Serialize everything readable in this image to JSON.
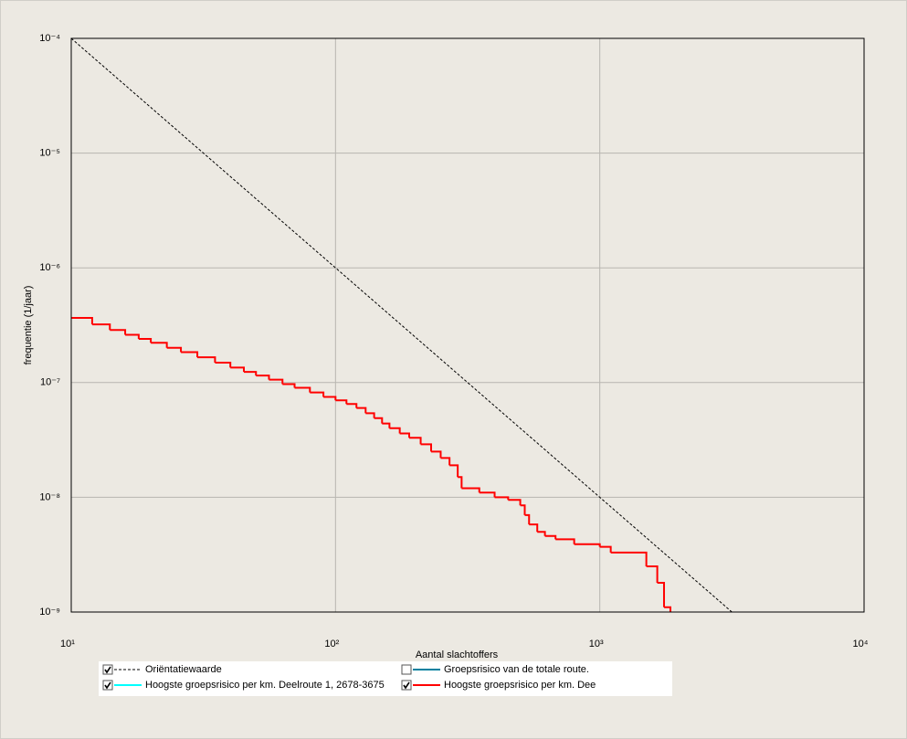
{
  "chart_data": {
    "type": "line",
    "x_label": "Aantal slachtoffers",
    "y_label": "frequentie (1/jaar)",
    "xlog": true,
    "ylog": true,
    "grid": true,
    "xlim": [
      10,
      10000
    ],
    "ylim": [
      1e-09,
      0.0001
    ],
    "xticks": [
      {
        "value": 10,
        "label": "10¹"
      },
      {
        "value": 100,
        "label": "10²"
      },
      {
        "value": 1000,
        "label": "10³"
      },
      {
        "value": 10000,
        "label": "10⁴"
      }
    ],
    "yticks": [
      {
        "value": 1e-09,
        "label": "10⁻⁹"
      },
      {
        "value": 1e-08,
        "label": "10⁻⁸"
      },
      {
        "value": 1e-07,
        "label": "10⁻⁷"
      },
      {
        "value": 1e-06,
        "label": "10⁻⁶"
      },
      {
        "value": 1e-05,
        "label": "10⁻⁵"
      },
      {
        "value": 0.0001,
        "label": "10⁻⁴"
      }
    ],
    "series": [
      {
        "name": "Oriëntatiewaarde",
        "color": "#000000",
        "dashed": true,
        "checked": true,
        "step": false,
        "x": [
          10,
          3162
        ],
        "values": [
          0.0001,
          1e-09
        ]
      },
      {
        "name": "Groepsrisico van de totale route.",
        "color": "#00809f",
        "checked": false
      },
      {
        "name": "Hoogste groepsrisico per km. Deelroute 1, 2678-3675",
        "color": "#00ffff",
        "checked": true
      },
      {
        "name": "Hoogste groepsrisico per km. Dee",
        "color": "#ff0000",
        "checked": true,
        "step": true,
        "x": [
          10,
          12,
          14,
          16,
          18,
          20,
          23,
          26,
          30,
          35,
          40,
          45,
          50,
          56,
          63,
          70,
          80,
          90,
          100,
          110,
          120,
          130,
          140,
          150,
          160,
          175,
          190,
          210,
          230,
          250,
          270,
          290,
          300,
          350,
          400,
          450,
          500,
          520,
          540,
          580,
          620,
          680,
          800,
          1000,
          1100,
          1500,
          1650,
          1750,
          1850
        ],
        "values": [
          3.66e-07,
          3.21e-07,
          2.87e-07,
          2.61e-07,
          2.4e-07,
          2.22e-07,
          2.01e-07,
          1.84e-07,
          1.66e-07,
          1.49e-07,
          1.35e-07,
          1.24e-07,
          1.15e-07,
          1.06e-07,
          9.7e-08,
          9e-08,
          8.2e-08,
          7.5e-08,
          7e-08,
          6.5e-08,
          6e-08,
          5.4e-08,
          4.9e-08,
          4.4e-08,
          4e-08,
          3.6e-08,
          3.3e-08,
          2.9e-08,
          2.5e-08,
          2.2e-08,
          1.9e-08,
          1.5e-08,
          1.2e-08,
          1.1e-08,
          1e-08,
          9.5e-09,
          8.5e-09,
          7e-09,
          5.8e-09,
          5e-09,
          4.6e-09,
          4.3e-09,
          3.9e-09,
          3.7e-09,
          3.3e-09,
          2.5e-09,
          1.8e-09,
          1.1e-09,
          1e-09
        ]
      }
    ]
  }
}
